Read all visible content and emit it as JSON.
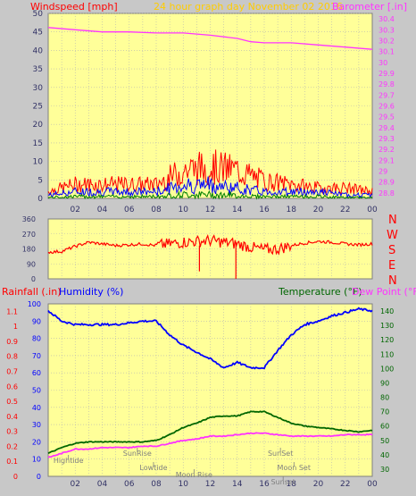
{
  "colors": {
    "background": "#c8c8c8",
    "plot_bg": "#ffff99",
    "grid": "#b4b4b4",
    "wind_label": "#ff0000",
    "title": "#ffcc00",
    "barometer": "#ff33ff",
    "humidity": "#0000ff",
    "temperature": "#006600",
    "dewpoint": "#ff33ff",
    "rain": "#ff0000",
    "direction": "#ff0000",
    "events": "#808080",
    "gust": "#ff0000",
    "avg_wind": "#0000ff",
    "calm_wind": "#008000"
  },
  "header": {
    "title": "24 hour graph day   November 02 2016"
  },
  "x_ticks": [
    "02",
    "04",
    "06",
    "08",
    "10",
    "12",
    "14",
    "16",
    "18",
    "20",
    "22",
    "00"
  ],
  "chart_data": [
    {
      "type": "line",
      "name": "wind-barometer",
      "left_label": "Windspeed [mph]",
      "right_label": "Barometer [.in]",
      "y_left_ticks": [
        "0",
        "5",
        "10",
        "15",
        "20",
        "25",
        "30",
        "35",
        "40",
        "45",
        "50"
      ],
      "y_left_lim": [
        0,
        50
      ],
      "y_right_ticks": [
        "28.8",
        "28.9",
        "29",
        "29.1",
        "29.2",
        "29.3",
        "29.4",
        "29.5",
        "29.6",
        "29.7",
        "29.8",
        "29.9",
        "30",
        "30.1",
        "30.2",
        "30.3",
        "30.4"
      ],
      "y_right_lim": [
        28.75,
        30.45
      ],
      "x_hours": [
        0,
        2,
        4,
        6,
        8,
        10,
        11,
        12,
        14,
        15,
        16,
        18,
        20,
        22,
        24
      ],
      "series": [
        {
          "name": "Barometer",
          "axis": "right",
          "x": [
            0,
            2,
            4,
            6,
            8,
            10,
            11,
            12,
            14,
            15,
            16,
            18,
            20,
            22,
            24
          ],
          "values": [
            30.32,
            30.3,
            30.28,
            30.28,
            30.27,
            30.27,
            30.26,
            30.25,
            30.22,
            30.19,
            30.18,
            30.18,
            30.16,
            30.14,
            30.12
          ]
        },
        {
          "name": "Wind gust",
          "axis": "left",
          "x": [
            0,
            2,
            4,
            6,
            8,
            10,
            12,
            14,
            16,
            18,
            20,
            22,
            24
          ],
          "values": [
            2,
            4,
            4,
            4,
            4,
            8,
            9,
            8,
            5,
            4,
            3,
            3,
            2
          ]
        },
        {
          "name": "Wind average",
          "axis": "left",
          "x": [
            0,
            2,
            4,
            6,
            8,
            10,
            12,
            14,
            16,
            18,
            20,
            22,
            24
          ],
          "values": [
            1,
            2,
            2,
            2,
            2,
            4,
            4,
            3,
            2,
            2,
            2,
            1,
            1
          ]
        }
      ]
    },
    {
      "type": "line",
      "name": "wind-direction",
      "y_left_ticks": [
        "0",
        "90",
        "180",
        "270",
        "360"
      ],
      "y_left_lim": [
        0,
        360
      ],
      "compass": [
        "N",
        "W",
        "S",
        "E",
        "N"
      ],
      "series": [
        {
          "name": "Direction",
          "x": [
            0,
            1,
            2,
            3,
            4,
            5,
            6,
            7,
            8,
            9,
            10,
            11,
            12,
            13,
            14,
            15,
            16,
            17,
            18,
            19,
            20,
            21,
            22,
            23,
            24
          ],
          "values": [
            160,
            165,
            195,
            220,
            210,
            200,
            205,
            210,
            200,
            210,
            220,
            225,
            230,
            220,
            210,
            190,
            175,
            180,
            200,
            215,
            225,
            220,
            210,
            205,
            210
          ]
        }
      ]
    },
    {
      "type": "line",
      "name": "rain-humidity-temperature",
      "left_label_rain": "Rainfall (.in)",
      "left_label_humidity": "Humidity (%)",
      "right_label_temp": "Temperature (°F)",
      "right_label_dew": "Dew Point (°F)",
      "y_rain_ticks": [
        "0",
        "0.1",
        "0.2",
        "0.3",
        "0.4",
        "0.5",
        "0.6",
        "0.7",
        "0.8",
        "0.9",
        "1",
        "1.1"
      ],
      "y_rain_lim": [
        0,
        1.15
      ],
      "y_humidity_ticks": [
        "0",
        "10",
        "20",
        "30",
        "40",
        "50",
        "60",
        "70",
        "80",
        "90",
        "100"
      ],
      "y_humidity_lim": [
        0,
        100
      ],
      "y_temp_ticks": [
        "30",
        "40",
        "50",
        "60",
        "70",
        "80",
        "90",
        "100",
        "110",
        "120",
        "130",
        "140"
      ],
      "y_temp_lim": [
        25,
        145
      ],
      "series": [
        {
          "name": "Humidity",
          "axis": "humidity",
          "x": [
            0,
            1,
            2,
            3,
            4,
            5,
            6,
            7,
            8,
            9,
            10,
            11,
            12,
            13,
            14,
            15,
            16,
            17,
            18,
            19,
            20,
            21,
            22,
            23,
            24
          ],
          "values": [
            96,
            90,
            88,
            88,
            88,
            88,
            89,
            90,
            90,
            82,
            76,
            72,
            68,
            63,
            66,
            63,
            63,
            73,
            82,
            88,
            90,
            93,
            95,
            97,
            96
          ]
        },
        {
          "name": "Temperature",
          "axis": "temp",
          "x": [
            0,
            1,
            2,
            3,
            4,
            5,
            6,
            7,
            8,
            9,
            10,
            11,
            12,
            13,
            14,
            15,
            16,
            17,
            18,
            19,
            20,
            21,
            22,
            23,
            24
          ],
          "values": [
            41,
            45,
            48,
            49,
            49,
            49,
            49,
            49,
            50,
            54,
            59,
            62,
            66,
            67,
            67,
            70,
            70,
            66,
            62,
            60,
            59,
            58,
            57,
            56,
            57
          ]
        },
        {
          "name": "Dew Point",
          "axis": "temp",
          "x": [
            0,
            1,
            2,
            3,
            4,
            5,
            6,
            7,
            8,
            9,
            10,
            11,
            12,
            13,
            14,
            15,
            16,
            17,
            18,
            19,
            20,
            21,
            22,
            23,
            24
          ],
          "values": [
            38,
            41,
            44,
            44,
            45,
            45,
            45,
            46,
            46,
            48,
            50,
            51,
            53,
            53,
            54,
            55,
            55,
            54,
            53,
            53,
            53,
            53,
            54,
            54,
            54
          ]
        }
      ],
      "events": [
        {
          "label": "Hightide",
          "hour": 1.5,
          "row": 1
        },
        {
          "label": "SunRise",
          "hour": 6.6,
          "row": 0
        },
        {
          "label": "Lowtide",
          "hour": 7.8,
          "row": 2
        },
        {
          "label": "Moon Rise",
          "hour": 10.8,
          "row": 3
        },
        {
          "label": "SunSet",
          "hour": 17.2,
          "row": 0
        },
        {
          "label": "Moon Set",
          "hour": 18.2,
          "row": 2
        },
        {
          "label": "Sunset",
          "hour": 17.4,
          "row": 4
        }
      ]
    }
  ]
}
